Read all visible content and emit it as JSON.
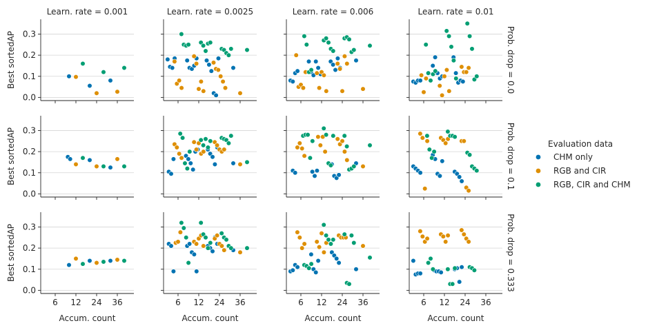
{
  "chart_data": {
    "type": "scatter",
    "y_label": "Best sortedAP",
    "x_label": "Accum. count",
    "col_titles": [
      "Learn. rate = 0.001",
      "Learn. rate = 0.0025",
      "Learn. rate = 0.006",
      "Learn. rate = 0.01"
    ],
    "row_titles": [
      "Prob. drop = 0.0",
      "Prob. drop = 0.1",
      "Prob. drop = 0.333"
    ],
    "x_ticks": [
      6,
      12,
      24,
      36
    ],
    "y_ticks": [
      0.0,
      0.1,
      0.2,
      0.3
    ],
    "y_tick_labels": [
      "0.0",
      "0.1",
      "0.2",
      "0.3"
    ],
    "ylim": [
      -0.015,
      0.37
    ],
    "grid": "horizontal",
    "legend": {
      "title": "Evaluation data",
      "position": "right",
      "entries": [
        "CHM only",
        "RGB and CIR",
        "RGB, CIR and CHM"
      ]
    },
    "colors": {
      "CHM only": "#0173b2",
      "RGB and CIR": "#de8f05",
      "RGB, CIR and CHM": "#029e73"
    },
    "panels": [
      [
        {
          "CHM only": {
            "12": [
              0.1
            ],
            "24": [
              0.055
            ],
            "36": [
              0.08
            ]
          },
          "RGB and CIR": {
            "12": [
              0.097
            ],
            "24": [
              0.02
            ],
            "36": [
              0.027
            ]
          },
          "RGB, CIR and CHM": {
            "12": [
              0.16
            ],
            "24": [
              0.12
            ],
            "36": [
              0.14
            ]
          }
        },
        {
          "CHM only": {
            "6": [
              0.18,
              0.145,
              0.14,
              0.185
            ],
            "12": [
              0.175,
              0.14,
              0.135,
              0.15,
              0.185
            ],
            "24": [
              0.175,
              0.155,
              0.125,
              0.02,
              0.01,
              0.185
            ],
            "36": [
              0.14
            ]
          },
          "RGB and CIR": {
            "6": [
              0.17,
              0.065,
              0.08,
              0.045
            ],
            "12": [
              0.195,
              0.16,
              0.04,
              0.075,
              0.03
            ],
            "24": [
              0.165,
              0.135,
              0.13,
              0.1,
              0.075,
              0.045
            ],
            "36": [
              0.02
            ]
          },
          "RGB, CIR and CHM": {
            "6": [
              0.3,
              0.25,
              0.245,
              0.25
            ],
            "12": [
              0.26,
              0.245,
              0.22,
              0.255,
              0.26
            ],
            "24": [
              0.23,
              0.225,
              0.21,
              0.2,
              0.23
            ],
            "36": [
              0.225
            ]
          }
        },
        {
          "CHM only": {
            "6": [
              0.08,
              0.075,
              0.115,
              0.125
            ],
            "12": [
              0.17,
              0.12,
              0.105,
              0.17,
              0.14,
              0.11
            ],
            "24": [
              0.17,
              0.155,
              0.13,
              0.185,
              0.14
            ],
            "36": [
              0.175
            ]
          },
          "RGB and CIR": {
            "6": [
              0.2,
              0.05,
              0.06,
              0.045,
              0.12
            ],
            "12": [
              0.115,
              0.045,
              0.12,
              0.105,
              0.03
            ],
            "24": [
              0.16,
              0.135,
              0.03,
              0.195,
              0.16
            ],
            "36": [
              0.04
            ]
          },
          "RGB, CIR and CHM": {
            "6": [
              0.29,
              0.25,
              0.12,
              0.13
            ],
            "12": [
              0.27,
              0.28,
              0.26,
              0.23,
              0.22
            ],
            "24": [
              0.28,
              0.285,
              0.275,
              0.215,
              0.225
            ],
            "36": [
              0.245
            ]
          }
        },
        {
          "CHM only": {
            "6": [
              0.075,
              0.07,
              0.08,
              0.08
            ],
            "12": [
              0.15,
              0.19,
              0.115,
              0.09,
              0.1
            ],
            "24": [
              0.19,
              0.115,
              0.07,
              0.08,
              0.075
            ]
          },
          "RGB and CIR": {
            "6": [
              0.105,
              0.025,
              0.09
            ],
            "12": [
              0.055,
              0.01,
              0.1,
              0.13,
              0.03
            ],
            "24": [
              0.145,
              0.12,
              0.12,
              0.14
            ]
          },
          "RGB, CIR and CHM": {
            "6": [
              0.25,
              0.115,
              0.08,
              0.11,
              0.125
            ],
            "12": [
              0.315,
              0.29,
              0.24,
              0.175,
              0.09
            ],
            "24": [
              0.35,
              0.29,
              0.23,
              0.085,
              0.1
            ]
          }
        }
      ],
      [
        {
          "CHM only": {
            "12": [
              0.175,
              0.165
            ],
            "24": [
              0.16
            ],
            "36": [
              0.125
            ]
          },
          "RGB and CIR": {
            "12": [
              0.14
            ],
            "24": [
              0.13
            ],
            "36": [
              0.165
            ]
          },
          "RGB, CIR and CHM": {
            "12": [
              0.17
            ],
            "24": [
              0.13
            ],
            "36": [
              0.13
            ]
          }
        },
        {
          "CHM only": {
            "6": [
              0.105,
              0.095,
              0.165
            ],
            "12": [
              0.18,
              0.165,
              0.145,
              0.115,
              0.2,
              0.21
            ],
            "24": [
              0.21,
              0.19,
              0.175,
              0.14,
              0.22
            ],
            "36": [
              0.145
            ]
          },
          "RGB and CIR": {
            "6": [
              0.235,
              0.22,
              0.19,
              0.17
            ],
            "12": [
              0.245,
              0.21,
              0.24,
              0.19,
              0.2
            ],
            "24": [
              0.245,
              0.23,
              0.21,
              0.2,
              0.21
            ],
            "36": [
              0.14
            ]
          },
          "RGB, CIR and CHM": {
            "6": [
              0.285,
              0.265,
              0.145,
              0.12,
              0.2
            ],
            "12": [
              0.255,
              0.23,
              0.26,
              0.22,
              0.25
            ],
            "24": [
              0.265,
              0.26,
              0.255,
              0.24,
              0.275
            ],
            "36": [
              0.15
            ]
          }
        },
        {
          "CHM only": {
            "6": [
              0.11,
              0.1
            ],
            "12": [
              0.105,
              0.085,
              0.11
            ],
            "24": [
              0.14,
              0.085,
              0.075,
              0.09
            ],
            "36": [
              0.145
            ]
          },
          "RGB and CIR": {
            "6": [
              0.22,
              0.24,
              0.215,
              0.18
            ],
            "12": [
              0.27,
              0.23,
              0.27,
              0.2
            ],
            "24": [
              0.26,
              0.235,
              0.25,
              0.2,
              0.16
            ],
            "36": [
              0.13
            ]
          },
          "RGB, CIR and CHM": {
            "6": [
              0.275,
              0.28,
              0.28,
              0.17,
              0.25
            ],
            "12": [
              0.31,
              0.28,
              0.145,
              0.135,
              0.275
            ],
            "24": [
              0.275,
              0.225,
              0.115,
              0.12,
              0.13
            ],
            "36": [
              0.23
            ]
          }
        },
        {
          "CHM only": {
            "6": [
              0.13,
              0.12,
              0.11,
              0.1
            ],
            "12": [
              0.185,
              0.165,
              0.095,
              0.085,
              0.155
            ],
            "24": [
              0.105,
              0.095,
              0.08,
              0.06
            ]
          },
          "RGB and CIR": {
            "6": [
              0.285,
              0.265,
              0.025,
              0.25
            ],
            "12": [
              0.265,
              0.255,
              0.24,
              0.26
            ],
            "24": [
              0.25,
              0.25,
              0.03,
              0.015
            ]
          },
          "RGB, CIR and CHM": {
            "6": [
              0.275,
              0.21,
              0.17,
              0.2
            ],
            "12": [
              0.295,
              0.275,
              0.275,
              0.27
            ],
            "24": [
              0.195,
              0.185,
              0.13,
              0.12,
              0.11
            ]
          }
        }
      ],
      [
        {
          "CHM only": {
            "12": [
              0.12
            ],
            "24": [
              0.14
            ],
            "36": [
              0.14
            ]
          },
          "RGB and CIR": {
            "12": [
              0.15
            ],
            "24": [
              0.13
            ],
            "36": [
              0.145
            ]
          },
          "RGB, CIR and CHM": {
            "12": [
              0.125
            ],
            "24": [
              0.135
            ],
            "36": [
              0.14
            ]
          }
        },
        {
          "CHM only": {
            "6": [
              0.22,
              0.21,
              0.09
            ],
            "12": [
              0.21,
              0.22,
              0.18,
              0.17,
              0.09
            ],
            "24": [
              0.21,
              0.2,
              0.185,
              0.25,
              0.22
            ],
            "36": [
              0.19
            ]
          },
          "RGB and CIR": {
            "6": [
              0.225,
              0.23,
              0.275
            ],
            "12": [
              0.23,
              0.22,
              0.245,
              0.26,
              0.21
            ],
            "24": [
              0.245,
              0.26,
              0.22,
              0.21,
              0.19
            ],
            "36": [
              0.18
            ]
          },
          "RGB, CIR and CHM": {
            "6": [
              0.32,
              0.295,
              0.25,
              0.13
            ],
            "12": [
              0.32,
              0.265,
              0.25,
              0.2,
              0.225
            ],
            "24": [
              0.27,
              0.25,
              0.24,
              0.21,
              0.2
            ],
            "36": [
              0.2
            ]
          }
        },
        {
          "CHM only": {
            "6": [
              0.09,
              0.095,
              0.12,
              0.11
            ],
            "12": [
              0.17,
              0.1,
              0.085,
              0.14
            ],
            "24": [
              0.18,
              0.165,
              0.15,
              0.13
            ],
            "36": [
              0.1
            ]
          },
          "RGB and CIR": {
            "6": [
              0.275,
              0.25,
              0.2,
              0.22
            ],
            "12": [
              0.23,
              0.205,
              0.27,
              0.18,
              0.225
            ],
            "24": [
              0.26,
              0.25,
              0.25,
              0.25
            ],
            "36": [
              0.21
            ]
          },
          "RGB, CIR and CHM": {
            "6": [
              0.12,
              0.115,
              0.105,
              0.125
            ],
            "12": [
              0.31,
              0.26,
              0.24,
              0.22,
              0.24
            ],
            "24": [
              0.265,
              0.035,
              0.03,
              0.26,
              0.225
            ],
            "36": [
              0.155
            ]
          }
        },
        {
          "CHM only": {
            "6": [
              0.14,
              0.075,
              0.08,
              0.08
            ],
            "12": [
              0.095,
              0.09,
              0.09,
              0.085
            ],
            "24": [
              0.1,
              0.105,
              0.04,
              0.11
            ]
          },
          "RGB and CIR": {
            "6": [
              0.28,
              0.255,
              0.23,
              0.245
            ],
            "12": [
              0.265,
              0.255,
              0.23,
              0.26
            ],
            "24": [
              0.285,
              0.265,
              0.245,
              0.23
            ]
          },
          "RGB, CIR and CHM": {
            "6": [
              0.13,
              0.15,
              0.1
            ],
            "12": [
              0.1,
              0.03,
              0.03,
              0.105
            ],
            "24": [
              0.11,
              0.105,
              0.095
            ]
          }
        }
      ]
    ]
  }
}
